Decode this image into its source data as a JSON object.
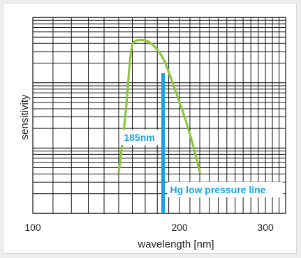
{
  "chart_data": {
    "type": "line",
    "xlabel": "wavelength [nm]",
    "ylabel": "sensitivity",
    "x_scale": "log",
    "y_scale": "log",
    "x_ticks": [
      100,
      200,
      300
    ],
    "x_tick_labels": [
      "100",
      "200",
      "300"
    ],
    "xlim": [
      100,
      330
    ],
    "y_decades": 3,
    "grid": true,
    "series": [
      {
        "color": "#8dc63f",
        "x": [
          150,
          155,
          159,
          162,
          165,
          168,
          172,
          178,
          186,
          195,
          205,
          214,
          220
        ],
        "y": [
          0.042,
          0.3,
          3.8,
          4.4,
          4.5,
          4.5,
          4.4,
          3.6,
          2.3,
          0.85,
          0.3,
          0.1,
          0.043
        ]
      }
    ],
    "annotations": [
      {
        "type": "vline",
        "x": 185,
        "color": "#1ba1e2",
        "label": "185nm"
      },
      {
        "type": "text",
        "label": "Hg low pressure line",
        "color": "#1ba1e2"
      }
    ]
  }
}
